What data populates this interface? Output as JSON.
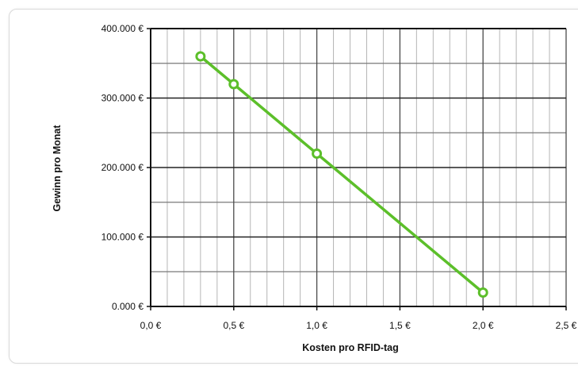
{
  "chart_data": {
    "type": "line",
    "title": "",
    "xlabel": "Kosten pro RFID-tag",
    "ylabel": "Gewinn pro Monat",
    "xlim": [
      0,
      2.5
    ],
    "ylim": [
      0,
      400000
    ],
    "x_ticks": [
      0,
      0.5,
      1.0,
      1.5,
      2.0,
      2.5
    ],
    "x_tick_labels": [
      "0,0 €",
      "0,5 €",
      "1,0 €",
      "1,5 €",
      "2,0 €",
      "2,5 €"
    ],
    "y_ticks": [
      0,
      100000,
      200000,
      300000,
      400000
    ],
    "y_tick_labels": [
      "0.000 €",
      "100.000 €",
      "200.000 €",
      "300.000 €",
      "400.000 €"
    ],
    "grid": true,
    "legend": "none",
    "series": [
      {
        "x": [
          0.3,
          0.5,
          1.0,
          2.0
        ],
        "y": [
          360000,
          320000,
          220000,
          20000
        ],
        "color": "#5cbf2a",
        "marker": "circle-open"
      }
    ]
  }
}
